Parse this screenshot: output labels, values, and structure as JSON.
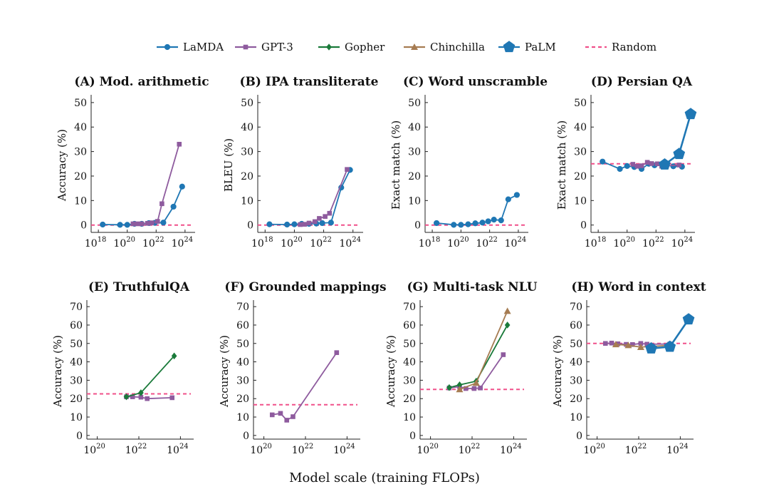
{
  "figure": {
    "xlabel": "Model scale (training FLOPs)"
  },
  "legend": [
    {
      "name": "LaMDA",
      "color": "#1f77b4",
      "marker": "circle",
      "dash": false
    },
    {
      "name": "GPT-3",
      "color": "#8e5b9e",
      "marker": "square",
      "dash": false
    },
    {
      "name": "Gopher",
      "color": "#1a7a3a",
      "marker": "diamond",
      "dash": false
    },
    {
      "name": "Chinchilla",
      "color": "#a67c52",
      "marker": "triangle",
      "dash": false
    },
    {
      "name": "PaLM",
      "color": "#1f77b4",
      "marker": "pentagon",
      "dash": false
    },
    {
      "name": "Random",
      "color": "#f0508a",
      "marker": "none",
      "dash": true
    }
  ],
  "chart_data": [
    {
      "type": "line",
      "title": "(A) Mod. arithmetic",
      "ylabel": "Accuracy (%)",
      "xscale": "log",
      "xlim_exp": [
        17.5,
        24.5
      ],
      "xticks_exp": [
        18,
        20,
        22,
        24
      ],
      "ylim": [
        -3,
        52
      ],
      "yticks": [
        0,
        10,
        20,
        30,
        40,
        50
      ],
      "random": 0,
      "series": [
        {
          "name": "LaMDA",
          "points": [
            [
              18.3,
              0.2
            ],
            [
              19.5,
              0.1
            ],
            [
              20.0,
              0.1
            ],
            [
              20.5,
              0.5
            ],
            [
              21.0,
              0.5
            ],
            [
              21.5,
              0.8
            ],
            [
              21.9,
              0.9
            ],
            [
              22.5,
              1.0
            ],
            [
              23.2,
              7.5
            ],
            [
              23.8,
              15.7
            ]
          ]
        },
        {
          "name": "GPT-3",
          "points": [
            [
              20.4,
              0.5
            ],
            [
              20.7,
              0.5
            ],
            [
              21.0,
              0.5
            ],
            [
              21.4,
              0.7
            ],
            [
              21.7,
              0.9
            ],
            [
              22.1,
              1.5
            ],
            [
              22.4,
              8.7
            ],
            [
              23.6,
              33.0
            ]
          ]
        }
      ]
    },
    {
      "type": "line",
      "title": "(B) IPA transliterate",
      "ylabel": "BLEU (%)",
      "xscale": "log",
      "xlim_exp": [
        17.5,
        24.5
      ],
      "xticks_exp": [
        18,
        20,
        22,
        24
      ],
      "ylim": [
        -3,
        52
      ],
      "yticks": [
        0,
        10,
        20,
        30,
        40,
        50
      ],
      "random": 0,
      "series": [
        {
          "name": "LaMDA",
          "points": [
            [
              18.3,
              0.3
            ],
            [
              19.5,
              0.2
            ],
            [
              20.0,
              0.3
            ],
            [
              20.5,
              0.5
            ],
            [
              21.0,
              0.5
            ],
            [
              21.5,
              0.6
            ],
            [
              21.9,
              0.8
            ],
            [
              22.5,
              1.0
            ],
            [
              23.2,
              15.3
            ],
            [
              23.8,
              22.5
            ]
          ]
        },
        {
          "name": "GPT-3",
          "points": [
            [
              20.4,
              0.2
            ],
            [
              20.7,
              0.3
            ],
            [
              21.0,
              0.8
            ],
            [
              21.4,
              1.4
            ],
            [
              21.7,
              2.7
            ],
            [
              22.1,
              3.5
            ],
            [
              22.4,
              4.8
            ],
            [
              23.6,
              22.7
            ]
          ]
        }
      ]
    },
    {
      "type": "line",
      "title": "(C) Word unscramble",
      "ylabel": "Exact match (%)",
      "xscale": "log",
      "xlim_exp": [
        17.5,
        24.5
      ],
      "xticks_exp": [
        18,
        20,
        22,
        24
      ],
      "ylim": [
        -3,
        52
      ],
      "yticks": [
        0,
        10,
        20,
        30,
        40,
        50
      ],
      "random": 0,
      "series": [
        {
          "name": "LaMDA",
          "points": [
            [
              18.3,
              0.8
            ],
            [
              19.5,
              0.1
            ],
            [
              20.0,
              0.1
            ],
            [
              20.5,
              0.3
            ],
            [
              21.0,
              0.7
            ],
            [
              21.5,
              1.0
            ],
            [
              21.9,
              1.5
            ],
            [
              22.3,
              2.2
            ],
            [
              22.8,
              1.9
            ],
            [
              23.3,
              10.5
            ],
            [
              23.9,
              12.3
            ]
          ]
        }
      ]
    },
    {
      "type": "line",
      "title": "(D) Persian QA",
      "ylabel": "Exact match (%)",
      "xscale": "log",
      "xlim_exp": [
        17.5,
        24.5
      ],
      "xticks_exp": [
        18,
        20,
        22,
        24
      ],
      "ylim": [
        -3,
        52
      ],
      "yticks": [
        0,
        10,
        20,
        30,
        40,
        50
      ],
      "random": 25,
      "series": [
        {
          "name": "LaMDA",
          "points": [
            [
              18.3,
              25.9
            ],
            [
              19.5,
              22.9
            ],
            [
              20.0,
              24.1
            ],
            [
              20.5,
              23.7
            ],
            [
              21.0,
              22.9
            ],
            [
              21.5,
              25.0
            ],
            [
              21.9,
              24.4
            ],
            [
              22.5,
              24.7
            ],
            [
              23.2,
              24.0
            ],
            [
              23.8,
              23.8
            ]
          ]
        },
        {
          "name": "GPT-3",
          "points": [
            [
              20.4,
              24.8
            ],
            [
              20.7,
              24.0
            ],
            [
              21.0,
              24.2
            ],
            [
              21.4,
              25.6
            ],
            [
              21.7,
              25.1
            ],
            [
              22.1,
              25.0
            ],
            [
              22.4,
              24.0
            ],
            [
              23.6,
              24.5
            ]
          ]
        },
        {
          "name": "PaLM",
          "points": [
            [
              22.6,
              24.7
            ],
            [
              23.6,
              29.0
            ],
            [
              24.4,
              45.3
            ]
          ]
        }
      ]
    },
    {
      "type": "line",
      "title": "(E) TruthfulQA",
      "ylabel": "Accuracy (%)",
      "xscale": "log",
      "xlim_exp": [
        19.5,
        24.5
      ],
      "xticks_exp": [
        20,
        22,
        24
      ],
      "ylim": [
        -2,
        72
      ],
      "yticks": [
        0,
        10,
        20,
        30,
        40,
        50,
        60,
        70
      ],
      "random": 22.6,
      "series": [
        {
          "name": "GPT-3",
          "points": [
            [
              21.4,
              21.0
            ],
            [
              21.7,
              21.0
            ],
            [
              22.1,
              20.8
            ],
            [
              22.4,
              20.0
            ],
            [
              23.6,
              20.5
            ]
          ]
        },
        {
          "name": "Gopher",
          "points": [
            [
              21.4,
              21.0
            ],
            [
              22.1,
              23.2
            ],
            [
              23.7,
              43.2
            ]
          ]
        }
      ]
    },
    {
      "type": "line",
      "title": "(F) Grounded mappings",
      "ylabel": "Accuracy (%)",
      "xscale": "log",
      "xlim_exp": [
        19.5,
        24.5
      ],
      "xticks_exp": [
        20,
        22,
        24
      ],
      "ylim": [
        -2,
        72
      ],
      "yticks": [
        0,
        10,
        20,
        30,
        40,
        50,
        60,
        70
      ],
      "random": 16.7,
      "series": [
        {
          "name": "GPT-3",
          "points": [
            [
              20.4,
              11.2
            ],
            [
              20.8,
              12.0
            ],
            [
              21.1,
              8.3
            ],
            [
              21.4,
              10.2
            ],
            [
              23.5,
              45.0
            ]
          ]
        }
      ]
    },
    {
      "type": "line",
      "title": "(G) Multi-task NLU",
      "ylabel": "Accuracy (%)",
      "xscale": "log",
      "xlim_exp": [
        19.5,
        24.5
      ],
      "xticks_exp": [
        20,
        22,
        24
      ],
      "ylim": [
        -2,
        72
      ],
      "yticks": [
        0,
        10,
        20,
        30,
        40,
        50,
        60,
        70
      ],
      "random": 25,
      "series": [
        {
          "name": "GPT-3",
          "points": [
            [
              20.9,
              25.8
            ],
            [
              21.4,
              26.5
            ],
            [
              21.7,
              25.5
            ],
            [
              22.1,
              25.5
            ],
            [
              22.4,
              25.8
            ],
            [
              23.5,
              43.9
            ]
          ]
        },
        {
          "name": "Gopher",
          "points": [
            [
              20.9,
              26.0
            ],
            [
              21.4,
              27.5
            ],
            [
              22.2,
              29.5
            ],
            [
              23.7,
              60.0
            ]
          ]
        },
        {
          "name": "Chinchilla",
          "points": [
            [
              21.4,
              25.0
            ],
            [
              22.2,
              28.5
            ],
            [
              23.7,
              67.6
            ]
          ]
        }
      ]
    },
    {
      "type": "line",
      "title": "(H) Word in context",
      "ylabel": "Accuracy (%)",
      "xscale": "log",
      "xlim_exp": [
        19.5,
        24.5
      ],
      "xticks_exp": [
        20,
        22,
        24
      ],
      "ylim": [
        -2,
        72
      ],
      "yticks": [
        0,
        10,
        20,
        30,
        40,
        50,
        60,
        70
      ],
      "random": 50,
      "series": [
        {
          "name": "GPT-3",
          "points": [
            [
              20.4,
              50.0
            ],
            [
              20.7,
              50.2
            ],
            [
              21.0,
              49.8
            ],
            [
              21.4,
              49.5
            ],
            [
              21.7,
              49.4
            ],
            [
              22.1,
              50.0
            ],
            [
              22.4,
              49.6
            ],
            [
              23.5,
              49.7
            ]
          ]
        },
        {
          "name": "Chinchilla",
          "points": [
            [
              20.9,
              49.5
            ],
            [
              21.5,
              49.0
            ],
            [
              22.1,
              48.0
            ],
            [
              23.5,
              49.0
            ]
          ]
        },
        {
          "name": "PaLM",
          "points": [
            [
              22.6,
              47.3
            ],
            [
              23.5,
              48.2
            ],
            [
              24.4,
              63.1
            ]
          ]
        }
      ]
    }
  ]
}
